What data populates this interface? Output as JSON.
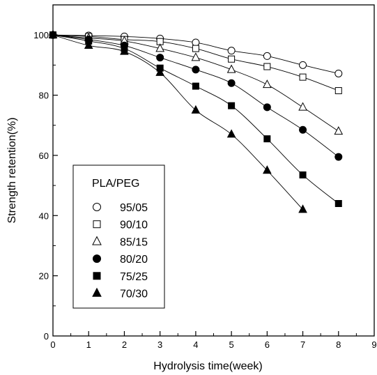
{
  "chart_data": {
    "type": "scatter",
    "title": "",
    "xlabel": "Hydrolysis time(week)",
    "ylabel": "Strength retention(%)",
    "xlim": [
      0,
      9
    ],
    "ylim": [
      0,
      110
    ],
    "xticks": [
      "0",
      "1",
      "2",
      "3",
      "4",
      "5",
      "6",
      "7",
      "8",
      "9"
    ],
    "yticks": [
      "0",
      "20",
      "40",
      "60",
      "80",
      "100"
    ],
    "grid": false,
    "legend_title": "PLA/PEG",
    "legend_position": "lower-left",
    "series": [
      {
        "name": "95/05",
        "marker": "circle-open",
        "x": [
          0,
          1,
          2,
          3,
          4,
          5,
          6,
          7,
          8
        ],
        "y": [
          100,
          99.8,
          99.5,
          98.8,
          97.5,
          94.8,
          93,
          90,
          87.2
        ]
      },
      {
        "name": "90/10",
        "marker": "square-open",
        "x": [
          0,
          1,
          2,
          3,
          4,
          5,
          6,
          7,
          8
        ],
        "y": [
          100,
          99.5,
          98.5,
          97.8,
          95.5,
          92,
          89.5,
          86,
          81.5
        ]
      },
      {
        "name": "85/15",
        "marker": "triangle-open",
        "x": [
          0,
          1,
          2,
          3,
          4,
          5,
          6,
          7,
          8
        ],
        "y": [
          100,
          99,
          98,
          95.5,
          92.5,
          88.5,
          83.5,
          76,
          68
        ]
      },
      {
        "name": "80/20",
        "marker": "circle-filled",
        "x": [
          0,
          1,
          2,
          3,
          4,
          5,
          6,
          7,
          8
        ],
        "y": [
          100,
          98.5,
          96.5,
          92.5,
          88.5,
          84,
          76,
          68.5,
          59.5
        ]
      },
      {
        "name": "75/25",
        "marker": "square-filled",
        "x": [
          0,
          1,
          2,
          3,
          4,
          5,
          6,
          7,
          8
        ],
        "y": [
          100,
          98,
          95.5,
          89,
          83,
          76.5,
          65.5,
          53.5,
          44
        ]
      },
      {
        "name": "70/30",
        "marker": "triangle-filled",
        "x": [
          0,
          1,
          2,
          3,
          4,
          5,
          6,
          7
        ],
        "y": [
          100,
          96.5,
          94.5,
          87.5,
          75,
          67,
          55,
          42
        ]
      }
    ]
  }
}
